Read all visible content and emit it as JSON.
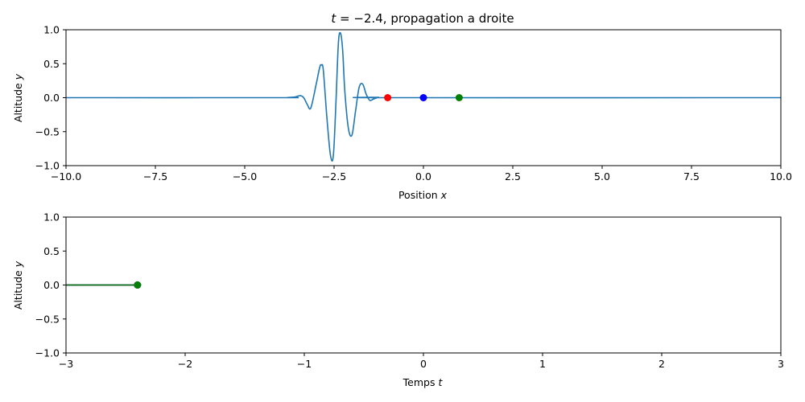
{
  "colors": {
    "wave": "#1f77b4",
    "red": "#ff0000",
    "blue": "#0000ff",
    "green": "#008000"
  },
  "chart_data": [
    {
      "type": "line",
      "title": {
        "var": "t",
        "text": " = −2.4, propagation a droite"
      },
      "xlabel": {
        "text": "Position ",
        "var": "x"
      },
      "ylabel": {
        "text": "Altitude ",
        "var": "y"
      },
      "xlim": [
        -10,
        10
      ],
      "ylim": [
        -1,
        1
      ],
      "xticks": [
        -10,
        -7.5,
        -5,
        -2.5,
        0,
        2.5,
        5,
        7.5,
        10
      ],
      "xtick_labels": [
        "−10.0",
        "−7.5",
        "−5.0",
        "−2.5",
        "0.0",
        "2.5",
        "5.0",
        "7.5",
        "10.0"
      ],
      "yticks": [
        -1,
        -0.5,
        0,
        0.5,
        1
      ],
      "ytick_labels": [
        "−1.0",
        "−0.5",
        "0.0",
        "0.5",
        "1.0"
      ],
      "series": [
        {
          "color": "#1f77b4",
          "x": [
            -10,
            -4,
            -3.8,
            -3.6,
            -3.45,
            -3.35,
            -3.25,
            -3.15,
            -3.0,
            -2.9,
            -2.85,
            -2.8,
            -2.7,
            -2.6,
            -2.52,
            -2.45,
            -2.38,
            -2.32,
            -2.26,
            -2.2,
            -2.1,
            -2.0,
            -1.9,
            -1.8,
            -1.7,
            -1.6,
            -1.5,
            -1.4,
            -1.25,
            -1.1,
            10
          ],
          "y": [
            0,
            0,
            0.003,
            0.01,
            0.03,
            0.0,
            -0.1,
            -0.15,
            0.2,
            0.45,
            0.48,
            0.4,
            -0.3,
            -0.85,
            -0.85,
            -0.1,
            0.8,
            0.95,
            0.7,
            0.1,
            -0.45,
            -0.55,
            -0.2,
            0.15,
            0.2,
            0.05,
            -0.04,
            -0.02,
            0.005,
            0,
            0
          ]
        }
      ],
      "points": [
        {
          "x": -1,
          "y": 0,
          "color": "#ff0000"
        },
        {
          "x": 0,
          "y": 0,
          "color": "#0000ff"
        },
        {
          "x": 1,
          "y": 0,
          "color": "#008000"
        }
      ]
    },
    {
      "type": "line",
      "xlabel": {
        "text": "Temps ",
        "var": "t"
      },
      "ylabel": {
        "text": "Altitude ",
        "var": "y"
      },
      "xlim": [
        -3,
        3
      ],
      "ylim": [
        -1,
        1
      ],
      "xticks": [
        -3,
        -2,
        -1,
        0,
        1,
        2,
        3
      ],
      "xtick_labels": [
        "−3",
        "−2",
        "−1",
        "0",
        "1",
        "2",
        "3"
      ],
      "yticks": [
        -1,
        -0.5,
        0,
        0.5,
        1
      ],
      "ytick_labels": [
        "−1.0",
        "−0.5",
        "0.0",
        "0.5",
        "1.0"
      ],
      "series": [
        {
          "color": "#ff0000",
          "x": [
            -3,
            -2.4
          ],
          "y": [
            0,
            0
          ]
        },
        {
          "color": "#0000ff",
          "x": [
            -3,
            -2.4
          ],
          "y": [
            0,
            0
          ]
        },
        {
          "color": "#008000",
          "x": [
            -3,
            -2.4
          ],
          "y": [
            0,
            0
          ]
        }
      ],
      "points": [
        {
          "x": -2.4,
          "y": 0,
          "color": "#ff0000"
        },
        {
          "x": -2.4,
          "y": 0,
          "color": "#0000ff"
        },
        {
          "x": -2.4,
          "y": 0,
          "color": "#008000"
        }
      ]
    }
  ]
}
